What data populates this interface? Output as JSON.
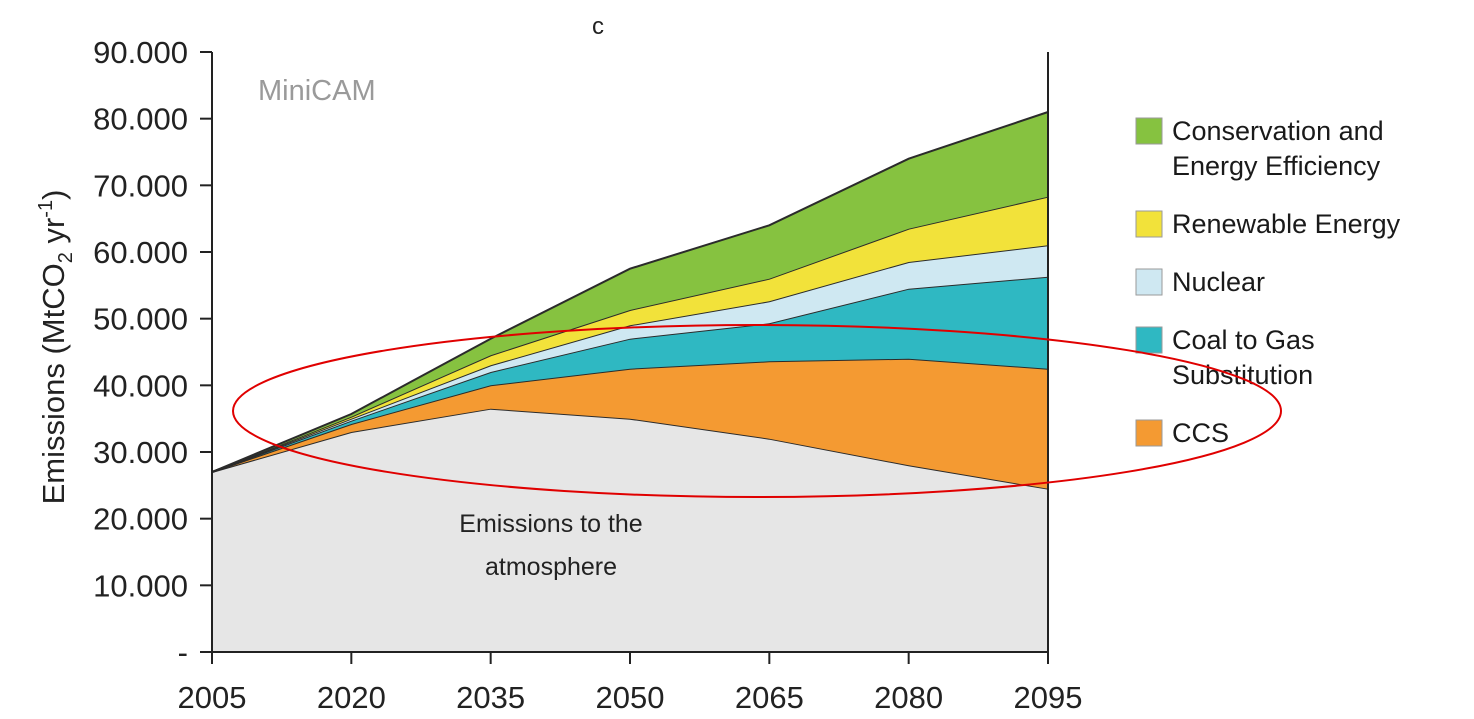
{
  "chart_data": {
    "type": "area",
    "stacked": true,
    "title": "c",
    "model_label": "MiniCAM",
    "ylabel_main": "Emissions (MtCO",
    "ylabel_sub": "2",
    "ylabel_mid": " yr",
    "ylabel_sup": "-1",
    "ylabel_end": ")",
    "x": [
      2005,
      2020,
      2035,
      2050,
      2065,
      2080,
      2095
    ],
    "x_tick_labels": [
      "2005",
      "2020",
      "2035",
      "2050",
      "2065",
      "2080",
      "2095"
    ],
    "ylim": [
      0,
      90000
    ],
    "y_ticks": [
      0,
      10000,
      20000,
      30000,
      40000,
      50000,
      60000,
      70000,
      80000,
      90000
    ],
    "y_tick_labels": [
      "-",
      "10.000",
      "20.000",
      "30.000",
      "40.000",
      "50.000",
      "60.000",
      "70.000",
      "80.000",
      "90.000"
    ],
    "series": [
      {
        "name": "Emissions to the atmosphere",
        "color": "#e6e6e6",
        "values": [
          27000,
          33000,
          36500,
          35000,
          32000,
          28000,
          24500
        ]
      },
      {
        "name": "CCS",
        "color": "#f49a32",
        "values": [
          0,
          1200,
          3500,
          7500,
          11600,
          16000,
          18000
        ]
      },
      {
        "name": "Coal to Gas Substitution",
        "color": "#2fb8c2",
        "values": [
          0,
          500,
          2000,
          4500,
          5700,
          10500,
          13800
        ]
      },
      {
        "name": "Nuclear",
        "color": "#cfe8f2",
        "values": [
          0,
          300,
          1000,
          2000,
          3300,
          4000,
          4700
        ]
      },
      {
        "name": "Renewable Energy",
        "color": "#f2e23a",
        "values": [
          0,
          300,
          1500,
          2300,
          3400,
          5000,
          7300
        ]
      },
      {
        "name": "Conservation and Energy Efficiency",
        "color": "#86c240",
        "values": [
          0,
          400,
          2500,
          6200,
          8000,
          10500,
          12700
        ]
      }
    ],
    "area_label_line1": "Emissions to the",
    "area_label_line2": "atmosphere",
    "legend": {
      "placement": "right",
      "items": [
        {
          "lines": [
            "Conservation and",
            "Energy Efficiency"
          ],
          "color": "#86c240"
        },
        {
          "lines": [
            "Renewable Energy"
          ],
          "color": "#f2e23a"
        },
        {
          "lines": [
            "Nuclear"
          ],
          "color": "#cfe8f2"
        },
        {
          "lines": [
            "Coal to Gas",
            "Substitution"
          ],
          "color": "#2fb8c2"
        },
        {
          "lines": [
            "CCS"
          ],
          "color": "#f49a32"
        }
      ]
    },
    "highlight_color": "#e00000"
  }
}
